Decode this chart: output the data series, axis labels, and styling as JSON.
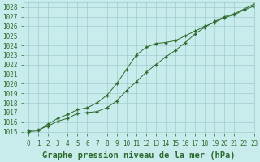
{
  "title": "Graphe pression niveau de la mer (hPa)",
  "xlim": [
    -0.5,
    23
  ],
  "ylim": [
    1014.8,
    1028.5
  ],
  "xticks": [
    0,
    1,
    2,
    3,
    4,
    5,
    6,
    7,
    8,
    9,
    10,
    11,
    12,
    13,
    14,
    15,
    16,
    17,
    18,
    19,
    20,
    21,
    22,
    23
  ],
  "yticks": [
    1015,
    1016,
    1017,
    1018,
    1019,
    1020,
    1021,
    1022,
    1023,
    1024,
    1025,
    1026,
    1027,
    1028
  ],
  "line1_x": [
    0,
    1,
    2,
    3,
    4,
    5,
    6,
    7,
    8,
    9,
    10,
    11,
    12,
    13,
    14,
    15,
    16,
    17,
    18,
    19,
    20,
    21,
    22,
    23
  ],
  "line1_y": [
    1015.1,
    1015.2,
    1015.6,
    1016.1,
    1016.4,
    1016.9,
    1017.0,
    1017.1,
    1017.5,
    1018.2,
    1019.3,
    1020.2,
    1021.2,
    1022.0,
    1022.8,
    1023.5,
    1024.3,
    1025.2,
    1025.9,
    1026.5,
    1027.0,
    1027.3,
    1027.8,
    1028.3
  ],
  "line2_x": [
    0,
    1,
    2,
    3,
    4,
    5,
    6,
    7,
    8,
    9,
    10,
    11,
    12,
    13,
    14,
    15,
    16,
    17,
    18,
    19,
    20,
    21,
    22,
    23
  ],
  "line2_y": [
    1015.0,
    1015.1,
    1015.8,
    1016.4,
    1016.8,
    1017.3,
    1017.5,
    1018.0,
    1018.8,
    1020.0,
    1021.5,
    1023.0,
    1023.8,
    1024.2,
    1024.3,
    1024.5,
    1025.0,
    1025.5,
    1026.0,
    1026.4,
    1026.9,
    1027.2,
    1027.7,
    1028.1
  ],
  "line_color": "#2d6a2d",
  "marker": "+",
  "background_color": "#c8ebeb",
  "grid_color": "#a0cccc",
  "title_fontsize": 7.5,
  "tick_fontsize": 5.5,
  "linewidth": 0.7,
  "markersize": 3.5,
  "markeredgewidth": 1.0
}
